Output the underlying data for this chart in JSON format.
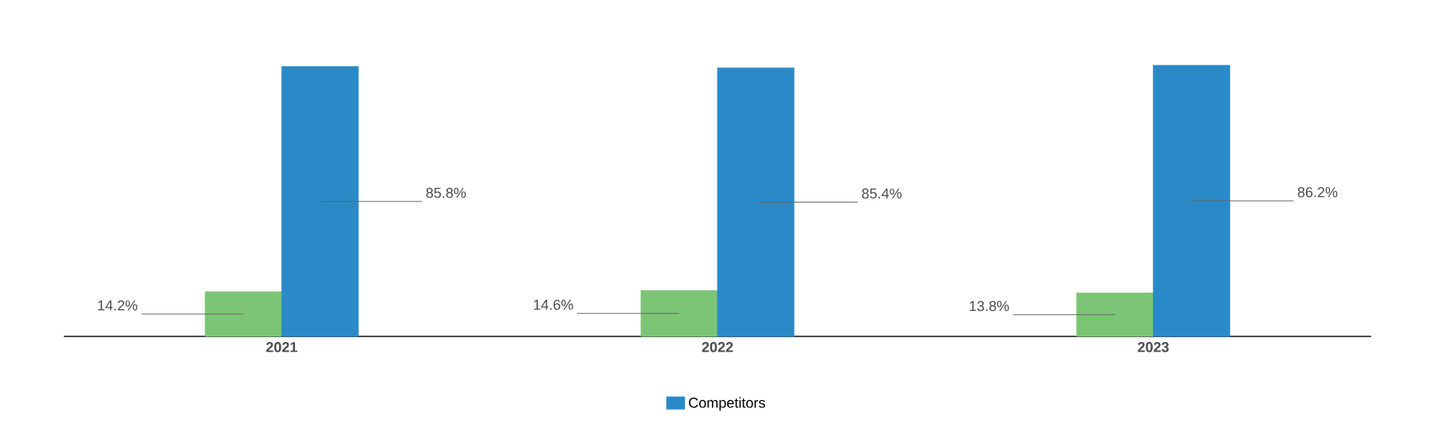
{
  "chart_data": {
    "type": "bar",
    "categories": [
      "2021",
      "2022",
      "2023"
    ],
    "series": [
      {
        "color": "#7cc576",
        "values": [
          14.2,
          14.6,
          13.8
        ],
        "value_labels": [
          "14.2%",
          "14.6%",
          "13.8%"
        ]
      },
      {
        "name": "Competitors",
        "color": "#2a8ac8",
        "values": [
          85.8,
          85.4,
          86.2
        ],
        "value_labels": [
          "85.8%",
          "85.4%",
          "86.2%"
        ]
      }
    ],
    "legend": "bottom"
  }
}
